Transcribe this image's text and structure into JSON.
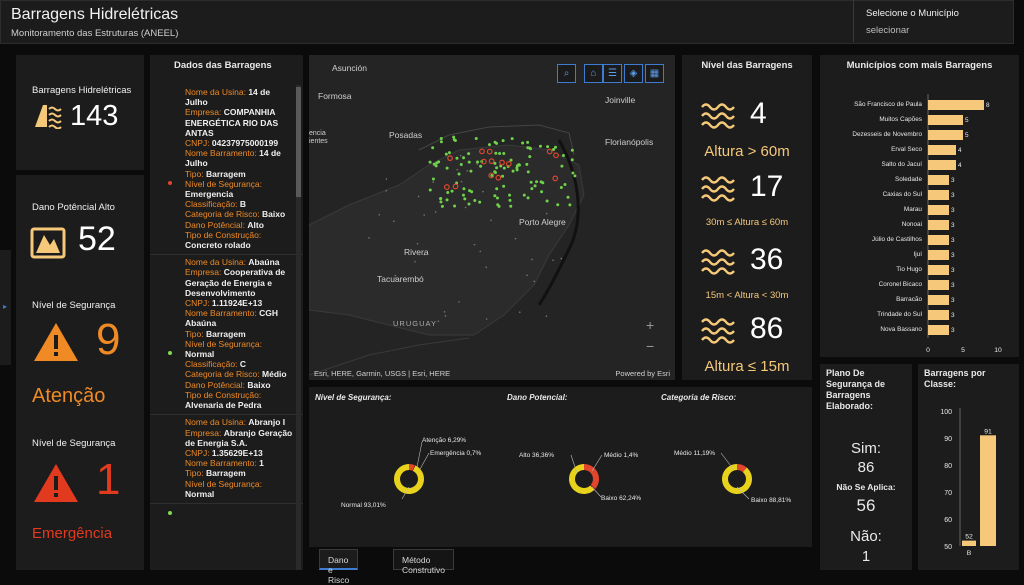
{
  "header": {
    "title": "Barragens Hidrelétricas",
    "subtitle": "Monitoramento das Estruturas (ANEEL)",
    "selector_label": "Selecione o Município",
    "selector_value": "selecionar"
  },
  "stats": {
    "barragens": {
      "label": "Barragens Hidrelétricas",
      "value": "143"
    },
    "dano": {
      "label": "Dano Potêncial Alto",
      "value": "52"
    },
    "atencao": {
      "label": "Nível de Segurança",
      "value": "9",
      "status": "Atenção"
    },
    "emergencia": {
      "label": "Nível de Segurança",
      "value": "1",
      "status": "Emergência"
    }
  },
  "list": {
    "title": "Dados das Barragens",
    "records": [
      {
        "dot": "#e0462c",
        "fields": [
          [
            "Nome da Usina:",
            "14 de Julho"
          ],
          [
            "Empresa:",
            "COMPANHIA ENERGÉTICA RIO DAS ANTAS"
          ],
          [
            "CNPJ:",
            "04237975000199"
          ],
          [
            "Nome Barramento:",
            "14 de Julho"
          ],
          [
            "Tipo:",
            "Barragem"
          ],
          [
            "Nível de Segurança:",
            "Emergencia"
          ],
          [
            "Classificação:",
            "B"
          ],
          [
            "Categoria de Risco:",
            "Baixo"
          ],
          [
            "Dano Potêncial:",
            "Alto"
          ],
          [
            "Tipo de Construção:",
            "Concreto rolado"
          ]
        ]
      },
      {
        "dot": "#7ed957",
        "fields": [
          [
            "Nome da Usina:",
            "Abaúna"
          ],
          [
            "Empresa:",
            "Cooperativa de Geração de Energia e Desenvolvimento"
          ],
          [
            "CNPJ:",
            "1.11924E+13"
          ],
          [
            "Nome Barramento:",
            "CGH Abaúna"
          ],
          [
            "Tipo:",
            "Barragem"
          ],
          [
            "Nível de Segurança:",
            "Normal"
          ],
          [
            "Classificação:",
            "C"
          ],
          [
            "Categoria de Risco:",
            "Médio"
          ],
          [
            "Dano Potêncial:",
            "Baixo"
          ],
          [
            "Tipo de Construção:",
            "Alvenaria de Pedra"
          ]
        ]
      },
      {
        "dot": "#7ed957",
        "fields": [
          [
            "Nome da Usina:",
            "Abranjo I"
          ],
          [
            "Empresa:",
            "Abranjo Geração de Energia S.A."
          ],
          [
            "CNPJ:",
            "1.35629E+13"
          ],
          [
            "Nome Barramento:",
            "1"
          ],
          [
            "Tipo:",
            "Barragem"
          ],
          [
            "Nível de Segurança:",
            "Normal"
          ]
        ]
      }
    ]
  },
  "map": {
    "labels": [
      "Asunción",
      "Formosa",
      "Posadas",
      "Joinville",
      "Florianópolis",
      "Porto Alegre",
      "Rivera",
      "Tacuarembó",
      "URUGUAY",
      "encia",
      "ientes"
    ],
    "attribution": "Esri, HERE, Garmin, USGS | Esri, HERE",
    "powered": "Powered by Esri",
    "tools": [
      "search-icon",
      "home-icon",
      "list-icon",
      "layers-icon",
      "grid-icon"
    ]
  },
  "levels": {
    "title": "Nível das Barragens",
    "rows": [
      {
        "value": "4",
        "text": "Altura > 60m"
      },
      {
        "value": "17",
        "text": "30m ≤ Altura ≤ 60m"
      },
      {
        "value": "36",
        "text": "15m < Altura < 30m"
      },
      {
        "value": "86",
        "text": "Altura ≤ 15m"
      }
    ]
  },
  "municipios": {
    "title": "Municípios com mais Barragens",
    "chart_data": {
      "type": "bar",
      "orientation": "horizontal",
      "categories": [
        "São Francisco de Paula",
        "Muitos Capões",
        "Dezesseis de Novembro",
        "Erval Seco",
        "Salto do Jacuí",
        "Soledade",
        "Caxias do Sul",
        "Marau",
        "Nonoai",
        "Júlio de Castilhos",
        "Ijuí",
        "Tio Hugo",
        "Coronel Bicaco",
        "Barracão",
        "Trindade do Sul",
        "Nova Bassano"
      ],
      "values": [
        8,
        5,
        5,
        4,
        4,
        3,
        3,
        3,
        3,
        3,
        3,
        3,
        3,
        3,
        3,
        3
      ],
      "xticks": [
        "0",
        "5",
        "10"
      ],
      "xlim": [
        0,
        10
      ],
      "color": "#f5c87a"
    }
  },
  "donuts": {
    "charts": [
      {
        "title": "Nível de Segurança:",
        "chart_data": {
          "type": "pie",
          "labels": [
            "Normal",
            "Atenção",
            "Emergência"
          ],
          "values": [
            93.01,
            6.29,
            0.7
          ],
          "colors": [
            "#e8d21c",
            "#e0462c",
            "#9b1a10"
          ]
        },
        "labels": [
          "Normal 93,01%",
          "Atenção 6,29%",
          "Emergência 0,7%"
        ]
      },
      {
        "title": "Dano Potencial:",
        "chart_data": {
          "type": "pie",
          "labels": [
            "Baixo",
            "Alto",
            "Médio"
          ],
          "values": [
            62.24,
            36.36,
            1.4
          ],
          "colors": [
            "#e8d21c",
            "#e0462c",
            "#9b1a10"
          ]
        },
        "labels": [
          "Baixo 62,24%",
          "Alto 36,36%",
          "Médio 1,4%"
        ]
      },
      {
        "title": "Categoria de Risco:",
        "chart_data": {
          "type": "pie",
          "labels": [
            "Baixo",
            "Médio"
          ],
          "values": [
            88.81,
            11.19
          ],
          "colors": [
            "#e8d21c",
            "#e0462c"
          ]
        },
        "labels": [
          "Baixo 88,81%",
          "Médio 11,19%"
        ]
      }
    ]
  },
  "tabs": [
    "Dano e Risco",
    "Método Construtivo"
  ],
  "plano": {
    "title": "Plano De Segurança de Barragens Elaborado:",
    "sim_label": "Sim:",
    "sim_value": "86",
    "na_label": "Não Se Aplica:",
    "na_value": "56",
    "nao_label": "Não:",
    "nao_value": "1"
  },
  "classe": {
    "title": "Barragens por Classe:",
    "chart_data": {
      "type": "bar",
      "categories": [
        "B",
        ""
      ],
      "values": [
        52,
        91
      ],
      "yticks": [
        "100",
        "90",
        "80",
        "70",
        "60",
        "50"
      ],
      "ylim": [
        50,
        100
      ],
      "color": "#f5c87a"
    }
  }
}
